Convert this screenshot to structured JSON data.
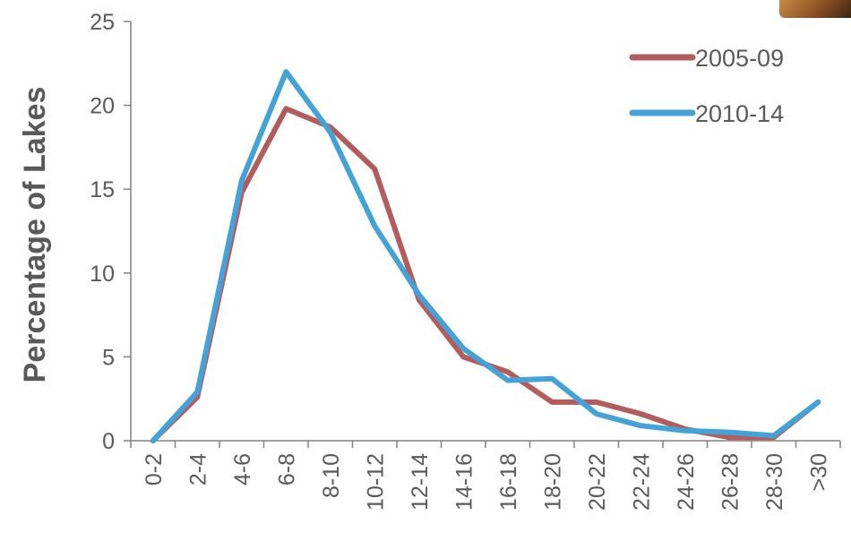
{
  "chart_data": {
    "type": "line",
    "title": "",
    "xlabel": "",
    "ylabel": "Percentage of Lakes",
    "ylim": [
      0,
      25
    ],
    "yticks": [
      0,
      5,
      10,
      15,
      20,
      25
    ],
    "categories": [
      "0-2",
      "2-4",
      "4-6",
      "6-8",
      "8-10",
      "10-12",
      "12-14",
      "14-16",
      "16-18",
      "18-20",
      "20-22",
      "22-24",
      "24-26",
      "26-28",
      "28-30",
      ">30"
    ],
    "series": [
      {
        "name": "2005-09",
        "color": "#b45c5c",
        "values": [
          0.0,
          2.6,
          14.8,
          19.8,
          18.7,
          16.2,
          8.4,
          5.0,
          4.1,
          2.3,
          2.3,
          1.6,
          0.7,
          0.2,
          0.2,
          2.3
        ]
      },
      {
        "name": "2010-14",
        "color": "#43a3d8",
        "values": [
          0.0,
          2.9,
          15.5,
          22.0,
          18.4,
          12.8,
          8.7,
          5.5,
          3.6,
          3.7,
          1.6,
          0.9,
          0.6,
          0.5,
          0.3,
          2.3
        ]
      }
    ],
    "grid": false,
    "legend_position": "top-right"
  },
  "decor": {
    "corner_image": "photo-thumbnail"
  }
}
